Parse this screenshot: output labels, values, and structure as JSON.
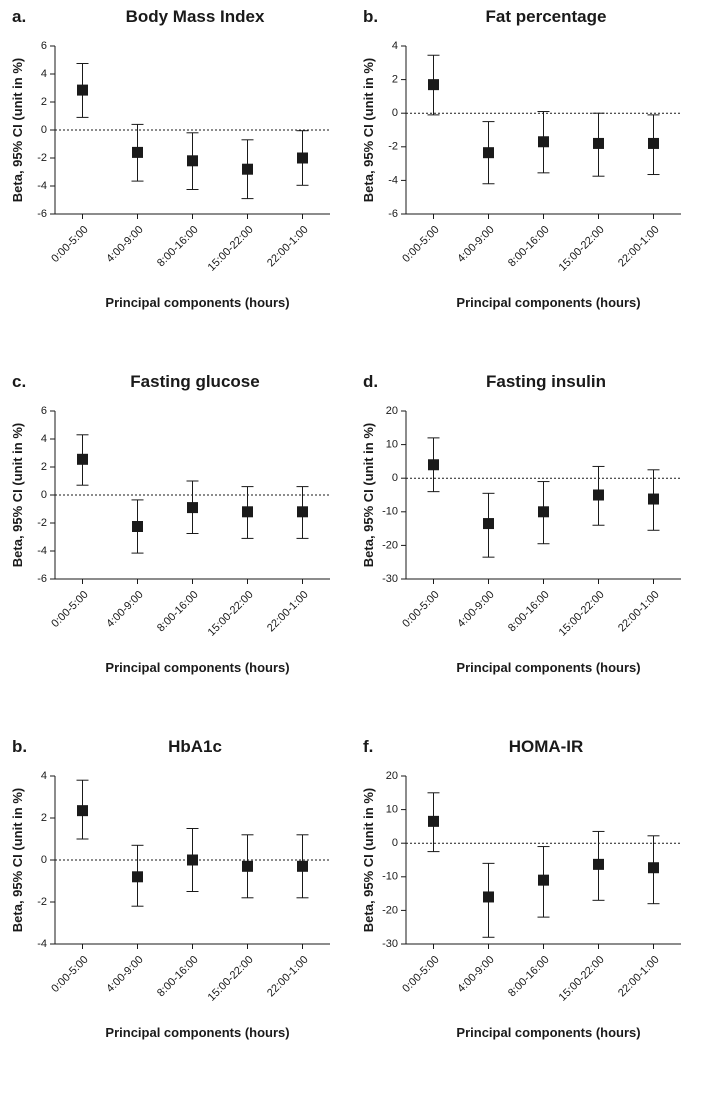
{
  "chart_data": [
    {
      "type": "errorbar",
      "panel": "a.",
      "title": "Body Mass Index",
      "ylabel": "Beta, 95% CI (unit in %)",
      "xlabel": "Principal components (hours)",
      "categories": [
        "0:00-5:00",
        "4:00-9:00",
        "8:00-16:00",
        "15:00-22:00",
        "22:00-1:00"
      ],
      "values": [
        2.85,
        -1.6,
        -2.2,
        -2.8,
        -2.0
      ],
      "lower": [
        0.9,
        -3.65,
        -4.25,
        -4.9,
        -3.95
      ],
      "upper": [
        4.75,
        0.4,
        -0.2,
        -0.7,
        -0.05
      ],
      "ylim": [
        -6,
        6
      ],
      "yticks": [
        -6,
        -4,
        -2,
        0,
        2,
        4,
        6
      ],
      "color": "#1a1a1a"
    },
    {
      "type": "errorbar",
      "panel": "b.",
      "title": "Fat percentage",
      "ylabel": "Beta, 95% CI (unit in %)",
      "xlabel": "Principal components (hours)",
      "categories": [
        "0:00-5:00",
        "4:00-9:00",
        "8:00-16:00",
        "15:00-22:00",
        "22:00-1:00"
      ],
      "values": [
        1.7,
        -2.35,
        -1.7,
        -1.8,
        -1.8
      ],
      "lower": [
        -0.1,
        -4.2,
        -3.55,
        -3.75,
        -3.65
      ],
      "upper": [
        3.45,
        -0.5,
        0.1,
        0.0,
        -0.1
      ],
      "ylim": [
        -6,
        4
      ],
      "yticks": [
        -6,
        -4,
        -2,
        0,
        2,
        4
      ],
      "color": "#1a1a1a"
    },
    {
      "type": "errorbar",
      "panel": "c.",
      "title": "Fasting glucose",
      "ylabel": "Beta, 95% CI (unit in %)",
      "xlabel": "Principal components (hours)",
      "categories": [
        "0:00-5:00",
        "4:00-9:00",
        "8:00-16:00",
        "15:00-22:00",
        "22:00-1:00"
      ],
      "values": [
        2.55,
        -2.25,
        -0.9,
        -1.2,
        -1.2
      ],
      "lower": [
        0.7,
        -4.15,
        -2.75,
        -3.1,
        -3.1
      ],
      "upper": [
        4.3,
        -0.35,
        1.0,
        0.6,
        0.6
      ],
      "ylim": [
        -6,
        6
      ],
      "yticks": [
        -6,
        -4,
        -2,
        0,
        2,
        4,
        6
      ],
      "color": "#1a1a1a"
    },
    {
      "type": "errorbar",
      "panel": "d.",
      "title": "Fasting insulin",
      "ylabel": "Beta, 95% CI (unit in %)",
      "xlabel": "Principal components (hours)",
      "categories": [
        "0:00-5:00",
        "4:00-9:00",
        "8:00-16:00",
        "15:00-22:00",
        "22:00-1:00"
      ],
      "values": [
        4,
        -13.5,
        -10,
        -5,
        -6.2
      ],
      "lower": [
        -4,
        -23.5,
        -19.5,
        -14,
        -15.5
      ],
      "upper": [
        12,
        -4.5,
        -1,
        3.5,
        2.5
      ],
      "ylim": [
        -30,
        20
      ],
      "yticks": [
        -30,
        -20,
        -10,
        0,
        10,
        20
      ],
      "color": "#1a1a1a"
    },
    {
      "type": "errorbar",
      "panel": "b.",
      "title": "HbA1c",
      "ylabel": "Beta, 95% CI (unit in %)",
      "xlabel": "Principal components (hours)",
      "categories": [
        "0:00-5:00",
        "4:00-9:00",
        "8:00-16:00",
        "15:00-22:00",
        "22:00-1:00"
      ],
      "values": [
        2.35,
        -0.8,
        0,
        -0.3,
        -0.3
      ],
      "lower": [
        1.0,
        -2.2,
        -1.5,
        -1.8,
        -1.8
      ],
      "upper": [
        3.8,
        0.7,
        1.5,
        1.2,
        1.2
      ],
      "ylim": [
        -4,
        4
      ],
      "yticks": [
        -4,
        -2,
        0,
        2,
        4
      ],
      "color": "#1a1a1a"
    },
    {
      "type": "errorbar",
      "panel": "f.",
      "title": "HOMA-IR",
      "ylabel": "Beta, 95% CI (unit in %)",
      "xlabel": "Principal components (hours)",
      "categories": [
        "0:00-5:00",
        "4:00-9:00",
        "8:00-16:00",
        "15:00-22:00",
        "22:00-1:00"
      ],
      "values": [
        6.5,
        -16,
        -11,
        -6.3,
        -7.3
      ],
      "lower": [
        -2.5,
        -28,
        -22,
        -17,
        -18
      ],
      "upper": [
        15,
        -6,
        -1,
        3.5,
        2.2
      ],
      "ylim": [
        -30,
        20
      ],
      "yticks": [
        -30,
        -20,
        -10,
        0,
        10,
        20
      ],
      "color": "#1a1a1a"
    }
  ]
}
